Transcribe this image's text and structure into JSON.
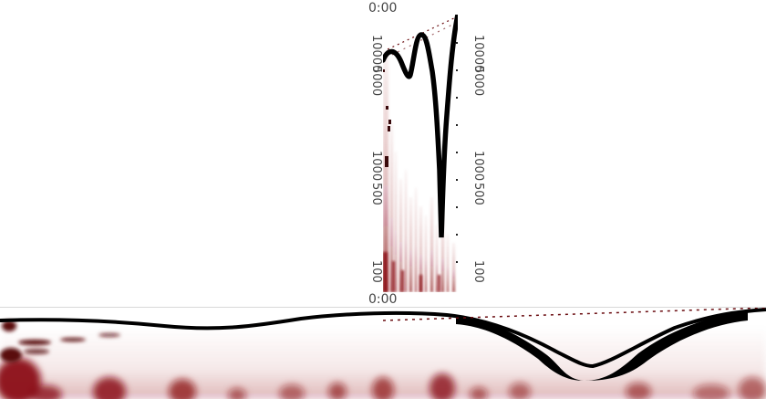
{
  "vertical_view": {
    "time_top": "0:00",
    "time_bottom": "0:00",
    "left_axis_ticks": [
      "10000",
      "5000",
      "1000",
      "500",
      "100"
    ],
    "right_axis_ticks": [
      "10000",
      "5000",
      "1000",
      "500",
      "100"
    ]
  },
  "colors": {
    "spectrogram": "#8b0f16",
    "trace": "#000000",
    "text": "#444444"
  }
}
